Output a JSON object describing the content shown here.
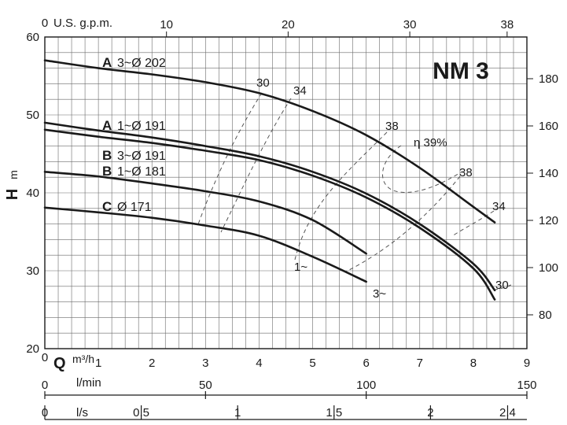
{
  "chart_data": {
    "type": "line",
    "title": "NM 3",
    "x_primary": {
      "label": "Q",
      "unit": "m³/h",
      "range": [
        0,
        9
      ],
      "ticks": [
        0,
        1,
        2,
        3,
        4,
        5,
        6,
        7,
        8,
        9
      ]
    },
    "y_left": {
      "label": "H",
      "unit": "m",
      "range": [
        20,
        60
      ],
      "ticks": [
        20,
        30,
        40,
        50,
        60
      ]
    },
    "x_top": {
      "label": "U.S. g.p.m.",
      "ticks": [
        0,
        10,
        20,
        30,
        38
      ]
    },
    "y_right": {
      "ticks": [
        80,
        100,
        120,
        140,
        160,
        180
      ]
    },
    "x_lmin": {
      "label": "l/min",
      "ticks": [
        0,
        50,
        100,
        150
      ]
    },
    "x_ls": {
      "label": "l/s",
      "ticks": [
        "0",
        "0.5",
        "1",
        "1.5",
        "2",
        "2.4"
      ]
    },
    "series": [
      {
        "letter": "A",
        "name": "3~Ø 202",
        "x": [
          0,
          1,
          2,
          3,
          4,
          5,
          6,
          7,
          8,
          8.4
        ],
        "y": [
          57,
          56,
          55.2,
          54.2,
          52.8,
          50.5,
          47.4,
          43.2,
          38.2,
          36.2
        ]
      },
      {
        "letter": "A",
        "name": "1~Ø 191",
        "x": [
          0,
          1,
          2,
          3,
          4,
          5,
          6,
          7,
          8,
          8.4
        ],
        "y": [
          49,
          48,
          47.1,
          46,
          44.7,
          42.7,
          39.9,
          36,
          30.9,
          27.5
        ]
      },
      {
        "letter": "B",
        "name": "3~Ø 191",
        "x": [
          0,
          1,
          2,
          3,
          4,
          5,
          6,
          7,
          8,
          8.4
        ],
        "y": [
          48.1,
          47.2,
          46.4,
          45.4,
          44.2,
          42.2,
          39.4,
          35.5,
          30.3,
          26.3
        ]
      },
      {
        "letter": "B",
        "name": "1~Ø 181",
        "x": [
          0,
          1,
          2,
          3,
          4,
          5,
          6
        ],
        "y": [
          42.7,
          42.1,
          41.2,
          40.2,
          38.9,
          36.5,
          32.2
        ]
      },
      {
        "letter": "C",
        "name": "Ø 171",
        "x": [
          0,
          1,
          2,
          3,
          4,
          5,
          6
        ],
        "y": [
          38.1,
          37.5,
          36.8,
          35.8,
          34.5,
          31.8,
          28.6
        ]
      }
    ],
    "efficiency_labels": [
      "30",
      "34",
      "38",
      "η 39%",
      "38",
      "34",
      "30"
    ],
    "phase_labels": [
      "1~",
      "3~"
    ],
    "grid": true
  }
}
